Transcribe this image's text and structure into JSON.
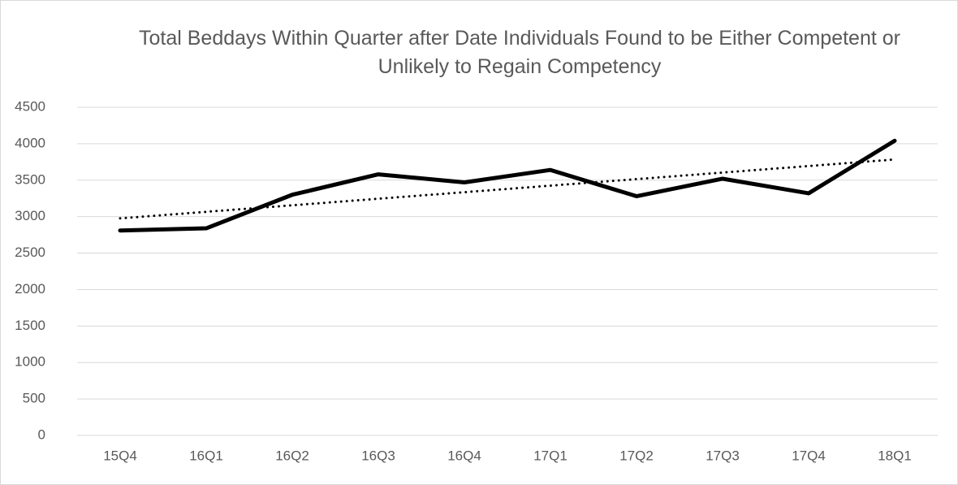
{
  "chart_data": {
    "type": "line",
    "title": "Total Beddays Within Quarter after Date Individuals Found to be Either Competent or Unlikely to Regain Competency",
    "categories": [
      "15Q4",
      "16Q1",
      "16Q2",
      "16Q3",
      "16Q4",
      "17Q1",
      "17Q2",
      "17Q3",
      "17Q4",
      "18Q1"
    ],
    "series": [
      {
        "color": "#000000",
        "values": [
          2810,
          2840,
          3300,
          3580,
          3470,
          3640,
          3280,
          3520,
          3320,
          4040
        ]
      }
    ],
    "trendline": "linear",
    "ylim": [
      0,
      4500
    ],
    "yticks": [
      0,
      500,
      1000,
      1500,
      2000,
      2500,
      3000,
      3500,
      4000,
      4500
    ],
    "grid": true
  }
}
